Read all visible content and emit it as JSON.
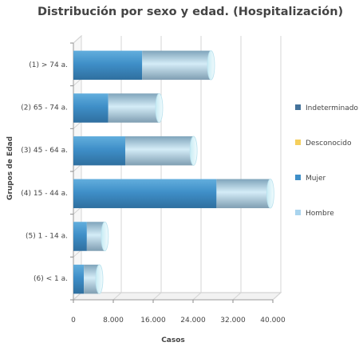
{
  "chart_data": {
    "type": "bar",
    "orientation": "horizontal",
    "stacked": true,
    "three_d": true,
    "title": "Distribución por sexo y edad. (Hospitalización)",
    "xlabel": "Casos",
    "ylabel": "Grupos de Edad",
    "categories": [
      "(1) > 74 a.",
      "(2) 65 - 74 a.",
      "(3) 45 - 64 a.",
      "(4) 15 - 44 a.",
      "(5) 1 - 14 a.",
      "(6) < 1 a."
    ],
    "xlim": [
      0,
      40000
    ],
    "x_ticks": [
      0,
      8000,
      16000,
      24000,
      32000,
      40000
    ],
    "x_tick_labels": [
      "0",
      "8.000",
      "16.000",
      "24.000",
      "32.000",
      "40.000"
    ],
    "grid": true,
    "legend_position": "right",
    "series": [
      {
        "name": "Indeterminado",
        "color": "#44729a",
        "values": [
          0,
          0,
          0,
          0,
          0,
          0
        ]
      },
      {
        "name": "Desconocido",
        "color": "#f5cf5c",
        "values": [
          0,
          0,
          0,
          0,
          0,
          0
        ]
      },
      {
        "name": "Mujer",
        "color": "#3f8fc8",
        "values": [
          13800,
          7000,
          10400,
          28700,
          2700,
          2100
        ]
      },
      {
        "name": "Hombre",
        "color": "#a9d4ee",
        "values": [
          13800,
          10200,
          13700,
          10800,
          3600,
          3100
        ]
      }
    ]
  }
}
